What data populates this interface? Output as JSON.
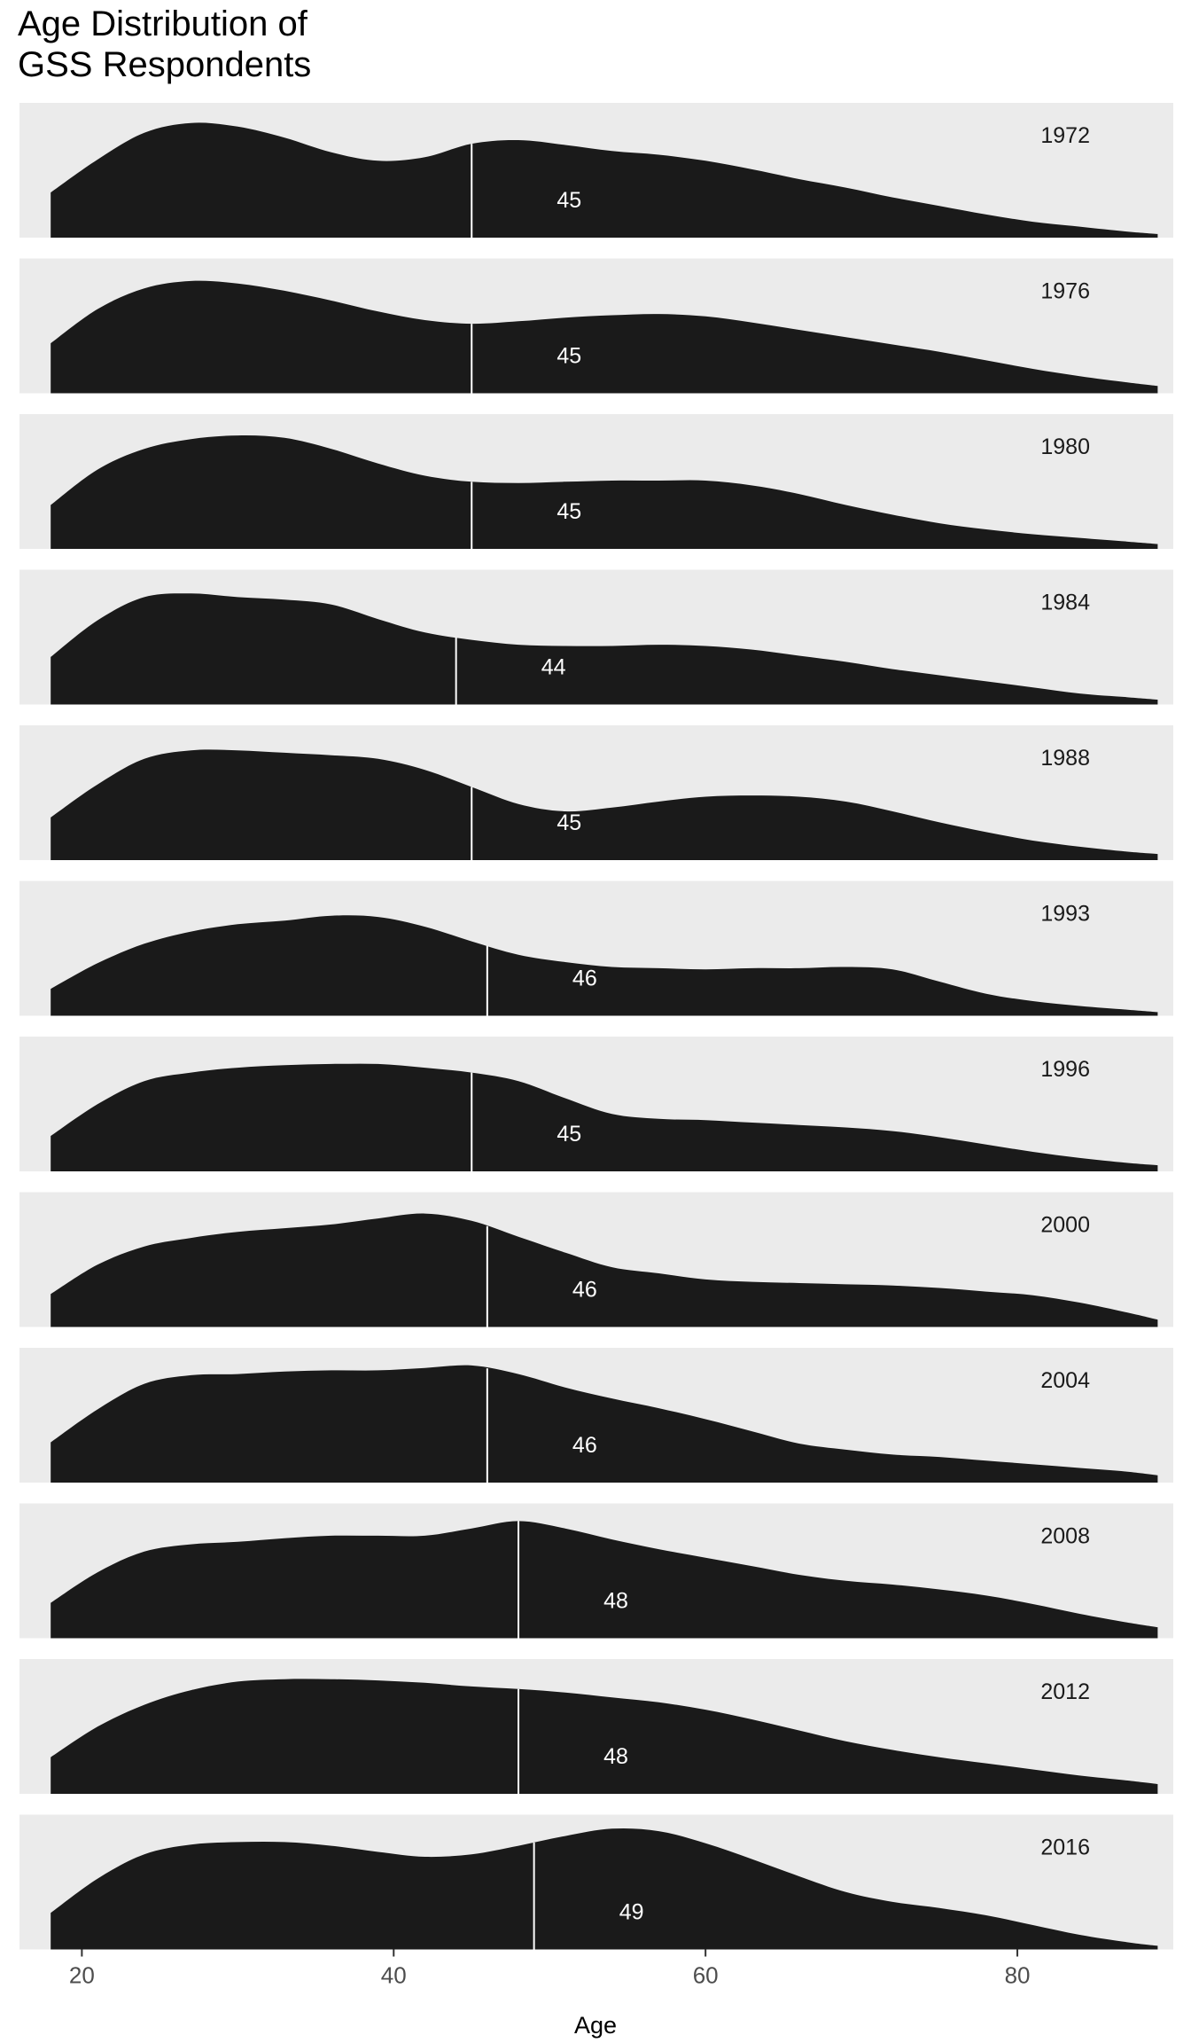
{
  "chart_data": {
    "type": "area",
    "title_lines": [
      "Age Distribution of",
      "GSS Respondents"
    ],
    "xlabel": "Age",
    "ylabel": "",
    "xlim": [
      16,
      90
    ],
    "x_range": [
      18,
      89
    ],
    "x_ticks": [
      20,
      40,
      60,
      80
    ],
    "grid": false,
    "colors": {
      "fill": "#1a1a1a",
      "panel": "#ebebeb",
      "median_line": "#ffffff",
      "median_text": "#ffffff"
    },
    "x_knots": [
      18,
      21,
      24,
      27,
      30,
      33,
      36,
      39,
      42,
      45,
      48,
      51,
      54,
      57,
      60,
      63,
      66,
      69,
      72,
      75,
      78,
      81,
      84,
      87,
      89
    ],
    "panels": [
      {
        "year": "1972",
        "median": 45,
        "median_label": "45",
        "density": [
          0.37,
          0.64,
          0.86,
          0.94,
          0.91,
          0.82,
          0.7,
          0.63,
          0.66,
          0.77,
          0.8,
          0.76,
          0.71,
          0.68,
          0.63,
          0.56,
          0.48,
          0.41,
          0.33,
          0.26,
          0.19,
          0.13,
          0.09,
          0.05,
          0.03
        ]
      },
      {
        "year": "1976",
        "median": 45,
        "median_label": "45",
        "density": [
          0.41,
          0.69,
          0.86,
          0.92,
          0.9,
          0.84,
          0.76,
          0.67,
          0.6,
          0.57,
          0.59,
          0.62,
          0.64,
          0.65,
          0.63,
          0.58,
          0.52,
          0.46,
          0.4,
          0.34,
          0.27,
          0.2,
          0.14,
          0.09,
          0.06
        ]
      },
      {
        "year": "1980",
        "median": 45,
        "median_label": "45",
        "density": [
          0.36,
          0.65,
          0.82,
          0.9,
          0.93,
          0.91,
          0.82,
          0.7,
          0.6,
          0.55,
          0.54,
          0.55,
          0.56,
          0.56,
          0.56,
          0.52,
          0.45,
          0.36,
          0.28,
          0.21,
          0.16,
          0.12,
          0.09,
          0.06,
          0.04
        ]
      },
      {
        "year": "1984",
        "median": 44,
        "median_label": "44",
        "density": [
          0.39,
          0.69,
          0.88,
          0.91,
          0.88,
          0.86,
          0.82,
          0.7,
          0.59,
          0.53,
          0.49,
          0.48,
          0.48,
          0.49,
          0.48,
          0.45,
          0.4,
          0.35,
          0.29,
          0.24,
          0.19,
          0.14,
          0.09,
          0.06,
          0.04
        ]
      },
      {
        "year": "1988",
        "median": 45,
        "median_label": "45",
        "density": [
          0.35,
          0.62,
          0.83,
          0.9,
          0.9,
          0.88,
          0.86,
          0.83,
          0.74,
          0.6,
          0.46,
          0.4,
          0.43,
          0.48,
          0.52,
          0.53,
          0.52,
          0.48,
          0.4,
          0.31,
          0.23,
          0.16,
          0.11,
          0.07,
          0.05
        ]
      },
      {
        "year": "1993",
        "median": 46,
        "median_label": "46",
        "density": [
          0.22,
          0.43,
          0.59,
          0.69,
          0.75,
          0.78,
          0.82,
          0.81,
          0.73,
          0.61,
          0.5,
          0.44,
          0.4,
          0.39,
          0.38,
          0.39,
          0.39,
          0.4,
          0.38,
          0.28,
          0.18,
          0.12,
          0.08,
          0.05,
          0.03
        ]
      },
      {
        "year": "1996",
        "median": 45,
        "median_label": "45",
        "density": [
          0.29,
          0.55,
          0.74,
          0.81,
          0.85,
          0.87,
          0.88,
          0.88,
          0.85,
          0.81,
          0.74,
          0.6,
          0.47,
          0.43,
          0.42,
          0.4,
          0.38,
          0.36,
          0.33,
          0.28,
          0.22,
          0.16,
          0.11,
          0.07,
          0.05
        ]
      },
      {
        "year": "2000",
        "median": 46,
        "median_label": "46",
        "density": [
          0.27,
          0.51,
          0.66,
          0.73,
          0.78,
          0.81,
          0.84,
          0.89,
          0.93,
          0.87,
          0.74,
          0.61,
          0.49,
          0.44,
          0.39,
          0.37,
          0.36,
          0.35,
          0.34,
          0.32,
          0.29,
          0.26,
          0.2,
          0.12,
          0.06
        ]
      },
      {
        "year": "2004",
        "median": 46,
        "median_label": "46",
        "density": [
          0.33,
          0.6,
          0.81,
          0.88,
          0.89,
          0.91,
          0.92,
          0.92,
          0.94,
          0.96,
          0.89,
          0.78,
          0.69,
          0.61,
          0.52,
          0.42,
          0.32,
          0.27,
          0.23,
          0.21,
          0.18,
          0.15,
          0.12,
          0.09,
          0.06
        ]
      },
      {
        "year": "2008",
        "median": 48,
        "median_label": "48",
        "density": [
          0.29,
          0.54,
          0.71,
          0.77,
          0.79,
          0.82,
          0.84,
          0.84,
          0.84,
          0.9,
          0.96,
          0.9,
          0.81,
          0.73,
          0.66,
          0.59,
          0.52,
          0.47,
          0.44,
          0.4,
          0.35,
          0.28,
          0.2,
          0.13,
          0.09
        ]
      },
      {
        "year": "2012",
        "median": 48,
        "median_label": "48",
        "density": [
          0.3,
          0.55,
          0.73,
          0.85,
          0.92,
          0.94,
          0.94,
          0.93,
          0.91,
          0.88,
          0.86,
          0.83,
          0.79,
          0.75,
          0.69,
          0.61,
          0.52,
          0.43,
          0.36,
          0.3,
          0.25,
          0.2,
          0.15,
          0.11,
          0.08
        ]
      },
      {
        "year": "2016",
        "median": 49,
        "median_label": "49",
        "density": [
          0.3,
          0.58,
          0.78,
          0.86,
          0.88,
          0.88,
          0.85,
          0.8,
          0.76,
          0.78,
          0.85,
          0.93,
          0.99,
          0.97,
          0.87,
          0.74,
          0.6,
          0.47,
          0.39,
          0.34,
          0.28,
          0.2,
          0.12,
          0.06,
          0.03
        ]
      }
    ]
  }
}
